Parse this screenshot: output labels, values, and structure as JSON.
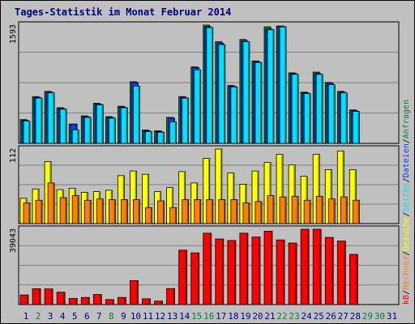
{
  "chart_data": {
    "type": "bar",
    "title": "Tages-Statistik im Monat Februar 2014",
    "days": [
      "1",
      "2",
      "3",
      "4",
      "5",
      "6",
      "7",
      "8",
      "9",
      "10",
      "11",
      "12",
      "13",
      "14",
      "15",
      "16",
      "17",
      "18",
      "19",
      "20",
      "21",
      "22",
      "23",
      "24",
      "25",
      "26",
      "27",
      "28",
      "29",
      "30",
      "31"
    ],
    "weekend_days": [
      "2",
      "8",
      "15",
      "16",
      "22",
      "23",
      "29",
      "30"
    ],
    "panels": [
      {
        "name": "top",
        "max_label": "1593",
        "ylim": [
          0,
          1593
        ],
        "series": [
          {
            "name": "Anfragen",
            "color": "#008040",
            "values": [
              320,
              630,
              700,
              480,
              260,
              370,
              540,
              360,
              500,
              830,
              180,
              170,
              350,
              630,
              1030,
              1593,
              1370,
              780,
              1400,
              1110,
              1570,
              1580,
              950,
              690,
              960,
              820,
              700,
              450,
              0,
              0,
              0
            ]
          },
          {
            "name": "Dateien",
            "color": "#0040ff",
            "values": [
              310,
              620,
              690,
              470,
              260,
              360,
              530,
              350,
              490,
              820,
              170,
              160,
              340,
              620,
              1020,
              1570,
              1350,
              770,
              1380,
              1100,
              1540,
              1580,
              940,
              680,
              940,
              810,
              690,
              440,
              0,
              0,
              0
            ]
          },
          {
            "name": "Seiten",
            "color": "#00e0ff",
            "values": [
              300,
              610,
              680,
              460,
              180,
              350,
              520,
              340,
              480,
              770,
              160,
              150,
              290,
              610,
              990,
              1560,
              1330,
              760,
              1370,
              1090,
              1530,
              1570,
              930,
              670,
              930,
              790,
              680,
              430,
              0,
              0,
              0
            ]
          }
        ]
      },
      {
        "name": "middle",
        "max_label": "112",
        "ylim": [
          0,
          112
        ],
        "series": [
          {
            "name": "Besuche",
            "color": "#ffff00",
            "values": [
              38,
              52,
              93,
              51,
              53,
              47,
              48,
              50,
              72,
              79,
              74,
              48,
              54,
              78,
              61,
              98,
              112,
              76,
              59,
              79,
              92,
              104,
              88,
              71,
              104,
              81,
              109,
              81,
              0,
              0,
              0
            ]
          },
          {
            "name": "Rechner",
            "color": "#ff8000",
            "values": [
              31,
              35,
              61,
              39,
              42,
              35,
              37,
              36,
              36,
              36,
              24,
              34,
              24,
              36,
              36,
              36,
              36,
              36,
              31,
              33,
              42,
              40,
              41,
              35,
              41,
              37,
              40,
              35,
              0,
              0,
              0
            ]
          }
        ]
      },
      {
        "name": "bottom",
        "max_label": "39043",
        "ylim": [
          0,
          39043
        ],
        "series": [
          {
            "name": "kB",
            "color": "#ff0000",
            "values": [
              5000,
              8200,
              8100,
              6400,
              3200,
              3700,
              5200,
              2600,
              3700,
              12400,
              3000,
              1800,
              8300,
              28200,
              26800,
              37000,
              34000,
              33200,
              37000,
              35000,
              38000,
              33500,
              31900,
              39043,
              39043,
              34800,
              32900,
              26000,
              0,
              0,
              0
            ]
          }
        ]
      }
    ],
    "right_labels": [
      {
        "text": "Anfragen",
        "color": "#008040"
      },
      {
        "text": "/",
        "color": "#000000"
      },
      {
        "text": "Dateien",
        "color": "#0040ff"
      },
      {
        "text": "/",
        "color": "#000000"
      },
      {
        "text": "Seiten",
        "color": "#00e0ff"
      },
      {
        "text": "/",
        "color": "#000000"
      },
      {
        "text": "Besuche",
        "color": "#ffff00"
      },
      {
        "text": "/",
        "color": "#000000"
      },
      {
        "text": "Rechner",
        "color": "#ff8000"
      },
      {
        "text": "/",
        "color": "#000000"
      },
      {
        "text": "kB",
        "color": "#ff0000"
      }
    ],
    "colors": {
      "background": "#c0c0c0",
      "panel": "#c0c0c0",
      "gridline": "#808080",
      "title": "#000080",
      "weekday_label": "#000080",
      "weekend_label": "#008040"
    },
    "grid": true
  }
}
